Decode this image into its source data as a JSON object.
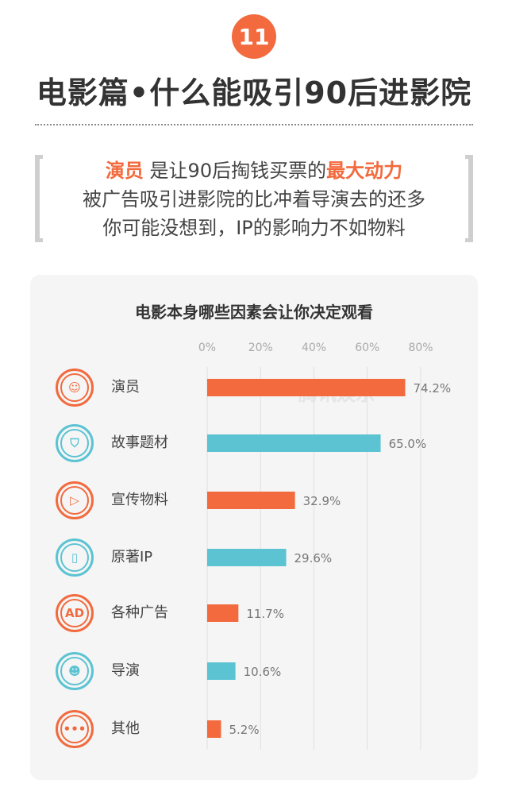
{
  "badge": "11",
  "header": {
    "title": "电影篇•什么能吸引90后进影院"
  },
  "quote": {
    "line1_highlight": "演员",
    "line1_text": "是让90后掏钱买票的",
    "line1_highlight2": "最大动力",
    "line2": "被广告吸引进影院的比冲着导演去的还多",
    "line3": "你可能没想到，IP的影响力不如物料"
  },
  "watermark": "腾讯娱乐",
  "colors": {
    "orange": "#f26a3d",
    "teal": "#5bc3d2"
  },
  "chart_data": {
    "type": "bar",
    "orientation": "horizontal",
    "title": "电影本身哪些因素会让你决定观看",
    "xlim": [
      0,
      80
    ],
    "ticks": [
      "0%",
      "20%",
      "40%",
      "60%",
      "80%"
    ],
    "tick_values": [
      0,
      20,
      40,
      60,
      80
    ],
    "grid": true,
    "categories": [
      "演员",
      "故事题材",
      "宣传物料",
      "原著IP",
      "各种广告",
      "导演",
      "其他"
    ],
    "values": [
      74.2,
      65.0,
      32.9,
      29.6,
      11.7,
      10.6,
      5.2
    ],
    "value_labels": [
      "74.2%",
      "65.0%",
      "32.9%",
      "29.6%",
      "11.7%",
      "10.6%",
      "5.2%"
    ],
    "bar_colors": [
      "#f26a3d",
      "#5bc3d2",
      "#f26a3d",
      "#5bc3d2",
      "#f26a3d",
      "#5bc3d2",
      "#f26a3d"
    ],
    "icons": [
      "actor-icon",
      "shield-icon",
      "play-icon",
      "book-icon",
      "ad-icon",
      "director-icon",
      "more-icon"
    ]
  }
}
